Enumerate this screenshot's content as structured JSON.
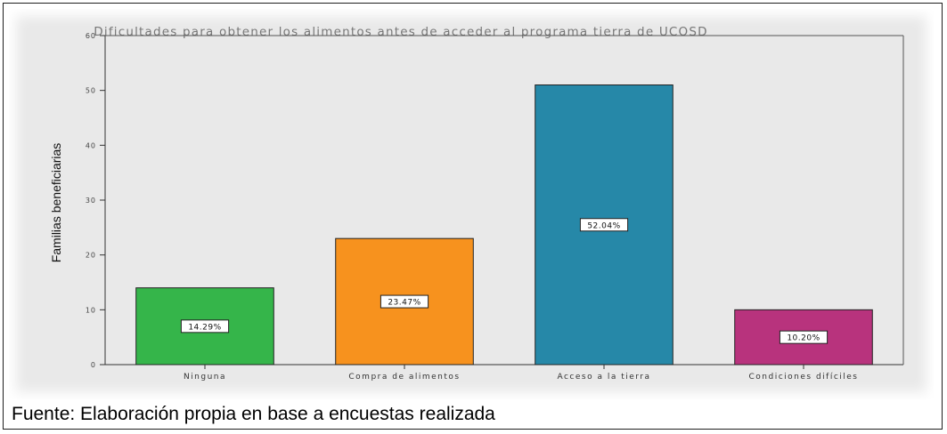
{
  "chart_data": {
    "type": "bar",
    "title": "Dificultades para obtener los alimentos antes de acceder al programa tierra de UCOSD",
    "xlabel": "",
    "ylabel": "Familias beneficiarias",
    "categories": [
      "Ninguna",
      "Compra de alimentos",
      "Acceso a la tierra",
      "Condiciones difíciles"
    ],
    "values": [
      14,
      23,
      51,
      10
    ],
    "data_labels": [
      "14.29%",
      "23.47%",
      "52.04%",
      "10.20%"
    ],
    "colors": [
      "#35b54a",
      "#f7921e",
      "#2688a8",
      "#b8337d"
    ],
    "ylim": [
      0,
      60
    ],
    "yticks": [
      0,
      10,
      20,
      30,
      40,
      50,
      60
    ],
    "ytick_labels": [
      "0",
      "10",
      "20",
      "30",
      "40",
      "50",
      "60"
    ],
    "grid": false,
    "legend": "none",
    "background": "#e9e9e9"
  },
  "caption": {
    "source_text": "Fuente: Elaboración propia en base a encuestas realizada"
  }
}
